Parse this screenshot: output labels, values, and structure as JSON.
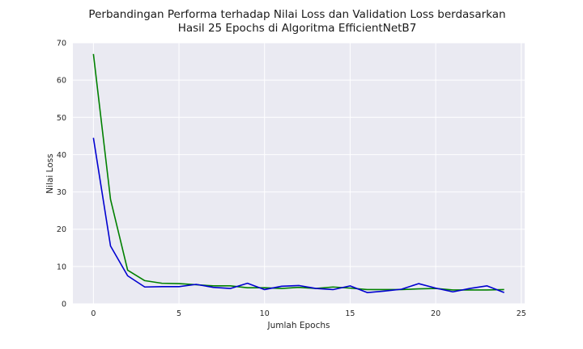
{
  "chart_data": {
    "type": "line",
    "title": "Perbandingan Performa terhadap Nilai Loss dan Validation Loss berdasarkan Hasil 25 Epochs di Algoritma EfficientNetB7",
    "title_lines": [
      "Perbandingan Performa terhadap Nilai Loss dan Validation Loss berdasarkan",
      "Hasil 25 Epochs di Algoritma EfficientNetB7"
    ],
    "xlabel": "Jumlah Epochs",
    "ylabel": "Nilai Loss",
    "xlim": [
      -1.2,
      25.2
    ],
    "ylim": [
      0,
      70
    ],
    "xticks": [
      0,
      5,
      10,
      15,
      20,
      25
    ],
    "yticks": [
      0,
      10,
      20,
      30,
      40,
      50,
      60,
      70
    ],
    "grid": true,
    "background": "#eaeaf2",
    "x": [
      0,
      1,
      2,
      3,
      4,
      5,
      6,
      7,
      8,
      9,
      10,
      11,
      12,
      13,
      14,
      15,
      16,
      17,
      18,
      19,
      20,
      21,
      22,
      23,
      24
    ],
    "series": [
      {
        "color": "#008000",
        "values": [
          67.0,
          28.0,
          9.0,
          6.2,
          5.5,
          5.4,
          5.1,
          4.8,
          4.8,
          4.3,
          4.3,
          4.1,
          4.4,
          4.1,
          4.5,
          4.2,
          3.8,
          3.8,
          3.8,
          4.0,
          4.1,
          3.7,
          3.7,
          3.7,
          3.8
        ]
      },
      {
        "color": "#0000d0",
        "values": [
          44.5,
          15.5,
          7.5,
          4.5,
          4.6,
          4.6,
          5.2,
          4.4,
          4.1,
          5.5,
          3.8,
          4.7,
          4.9,
          4.1,
          3.8,
          4.8,
          3.0,
          3.4,
          3.9,
          5.4,
          4.2,
          3.2,
          4.1,
          4.8,
          3.0
        ]
      }
    ]
  }
}
